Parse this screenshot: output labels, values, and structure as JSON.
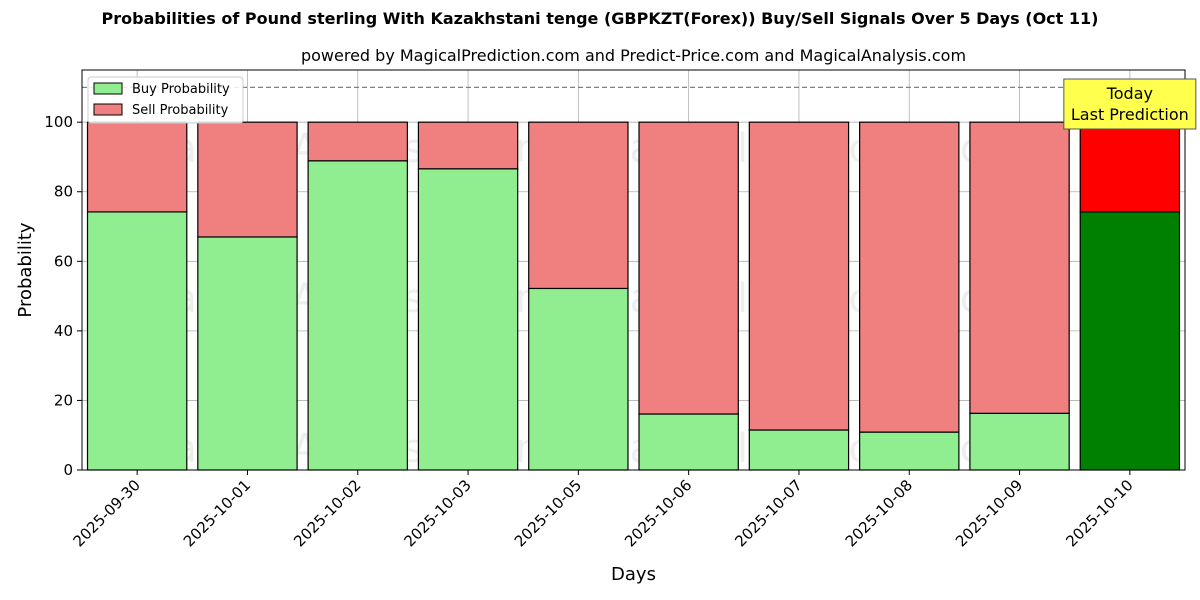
{
  "title": "Probabilities of Pound sterling With Kazakhstani tenge (GBPKZT(Forex)) Buy/Sell Signals Over 5 Days (Oct 11)",
  "subtitle": "powered by MagicalPrediction.com and Predict-Price.com and MagicalAnalysis.com",
  "watermarks": [
    "MagicalAnalysis.com",
    "MagicalPrediction.com"
  ],
  "colors": {
    "buy": "#90ee90",
    "sell": "#f08080",
    "buy_today": "#008000",
    "sell_today": "#ff0000",
    "annotation_bg": "#ffff4d",
    "reference_line": "#808080"
  },
  "chart_data": {
    "type": "bar",
    "stacked": true,
    "xlabel": "Days",
    "ylabel": "Probability",
    "ylim": [
      0,
      115
    ],
    "yticks": [
      0,
      20,
      40,
      60,
      80,
      100
    ],
    "categories": [
      "2025-09-30",
      "2025-10-01",
      "2025-10-02",
      "2025-10-03",
      "2025-10-05",
      "2025-10-06",
      "2025-10-07",
      "2025-10-08",
      "2025-10-09",
      "2025-10-10"
    ],
    "series": [
      {
        "name": "Buy Probability",
        "values": [
          74.2,
          67.0,
          88.9,
          86.6,
          52.2,
          16.1,
          11.5,
          10.9,
          16.3,
          74.2
        ]
      },
      {
        "name": "Sell Probability",
        "values": [
          25.8,
          33.0,
          11.1,
          13.4,
          47.8,
          83.9,
          88.5,
          89.1,
          83.7,
          25.8
        ]
      }
    ],
    "reference_line": {
      "y": 110,
      "style": "dashed"
    },
    "highlight_last": true,
    "annotation": {
      "lines": [
        "Today",
        "Last Prediction"
      ],
      "category": "2025-10-10"
    },
    "legend": {
      "placement": "top-left",
      "entries": [
        "Buy Probability",
        "Sell Probability"
      ]
    },
    "grid": true
  }
}
